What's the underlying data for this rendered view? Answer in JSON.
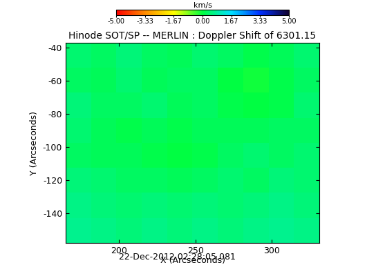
{
  "chart_data": {
    "type": "heatmap",
    "title": "Hinode SOT/SP -- MERLIN : Doppler Shift of 6301.15",
    "x_label": "X (Arcseconds)",
    "y_label": "Y (Arcseconds)",
    "annotation": "22-Dec-2012 02:28:05.081",
    "xlim": [
      165,
      331
    ],
    "ylim": [
      -158,
      -37
    ],
    "xticks": [
      200,
      250,
      300
    ],
    "yticks": [
      -140,
      -120,
      -100,
      -80,
      -60,
      -40
    ],
    "colorbar_label": "km/s",
    "colorbar_range": [
      -5,
      5
    ],
    "colorbar_ticks": [
      {
        "value": -5,
        "label": "-5.00"
      },
      {
        "value": -3.33,
        "label": "-3.33"
      },
      {
        "value": -1.67,
        "label": "-1.67"
      },
      {
        "value": 0,
        "label": "0.00"
      },
      {
        "value": 1.67,
        "label": "1.67"
      },
      {
        "value": 3.33,
        "label": "3.33"
      },
      {
        "value": 5,
        "label": "5.00"
      }
    ],
    "cells": [
      [
        0.4,
        0.3,
        0.5,
        0.3,
        0.2,
        0.4,
        0.3,
        0.1,
        0.2,
        0.4
      ],
      [
        0.3,
        0.2,
        0.4,
        0.2,
        0.3,
        0.3,
        0.0,
        -0.1,
        0.1,
        0.3
      ],
      [
        0.5,
        0.3,
        0.3,
        0.4,
        0.2,
        0.3,
        0.1,
        0.0,
        0.1,
        0.4
      ],
      [
        0.4,
        0.2,
        0.1,
        0.2,
        0.1,
        0.2,
        0.2,
        0.2,
        0.3,
        0.3
      ],
      [
        0.3,
        0.2,
        0.2,
        0.1,
        0.0,
        0.1,
        0.3,
        0.4,
        0.3,
        0.4
      ],
      [
        0.5,
        0.4,
        0.3,
        0.3,
        0.2,
        0.3,
        0.4,
        0.3,
        0.5,
        0.4
      ],
      [
        0.6,
        0.5,
        0.4,
        0.5,
        0.4,
        0.5,
        0.4,
        0.5,
        0.6,
        0.5
      ],
      [
        0.7,
        0.6,
        0.5,
        0.6,
        0.5,
        0.6,
        0.5,
        0.6,
        0.7,
        0.6
      ]
    ]
  }
}
